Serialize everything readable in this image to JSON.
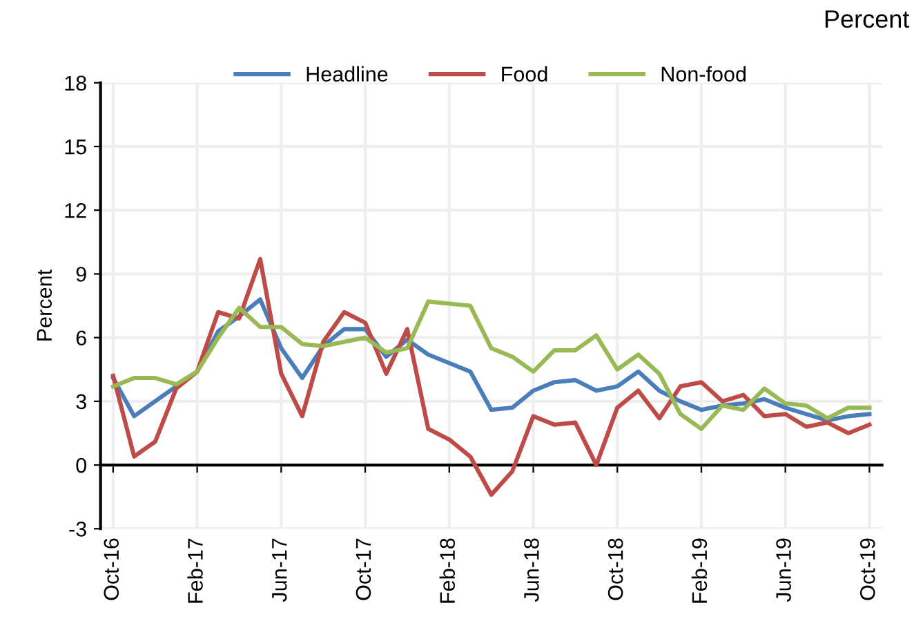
{
  "chart_data": {
    "type": "line",
    "categories": [
      "Oct-16",
      null,
      null,
      null,
      "Feb-17",
      null,
      null,
      null,
      "Jun-17",
      null,
      null,
      null,
      "Oct-17",
      null,
      null,
      null,
      "Feb-18",
      null,
      null,
      null,
      "Jun-18",
      null,
      null,
      null,
      "Oct-18",
      null,
      null,
      null,
      "Feb-19",
      null,
      null,
      null,
      "Jun-19",
      null,
      null,
      null,
      "Oct-19"
    ],
    "series": [
      {
        "name": "Headline",
        "color": "#4a7ebb",
        "values": [
          4.1,
          2.3,
          3.0,
          3.7,
          4.4,
          6.3,
          7.0,
          7.8,
          5.5,
          4.1,
          5.6,
          6.4,
          6.4,
          5.1,
          5.9,
          5.2,
          4.8,
          4.4,
          2.6,
          2.7,
          3.5,
          3.9,
          4.0,
          3.5,
          3.7,
          4.4,
          3.5,
          3.0,
          2.6,
          2.8,
          2.9,
          3.1,
          2.7,
          2.4,
          2.1,
          2.3,
          2.4
        ]
      },
      {
        "name": "Food",
        "color": "#be4b48",
        "values": [
          4.2,
          0.4,
          1.1,
          3.6,
          4.4,
          7.2,
          6.9,
          9.7,
          4.3,
          2.3,
          5.8,
          7.2,
          6.7,
          4.3,
          6.4,
          1.7,
          1.2,
          0.4,
          -1.4,
          -0.3,
          2.3,
          1.9,
          2.0,
          0.0,
          2.7,
          3.5,
          2.2,
          3.7,
          3.9,
          3.0,
          3.3,
          2.3,
          2.4,
          1.8,
          2.0,
          1.5,
          1.9
        ]
      },
      {
        "name": "Non-food",
        "color": "#98b954",
        "values": [
          3.7,
          4.1,
          4.1,
          3.8,
          4.4,
          6.0,
          7.4,
          6.5,
          6.5,
          5.7,
          5.6,
          5.8,
          6.0,
          5.3,
          5.5,
          7.7,
          7.6,
          7.5,
          5.5,
          5.1,
          4.4,
          5.4,
          5.4,
          6.1,
          4.5,
          5.2,
          4.3,
          2.4,
          1.7,
          2.8,
          2.6,
          3.6,
          2.9,
          2.8,
          2.2,
          2.7,
          2.7
        ]
      }
    ],
    "ylabel": "Percent",
    "ylim": [
      -3,
      18
    ],
    "yticks": [
      -3,
      0,
      3,
      6,
      9,
      12,
      15,
      18
    ],
    "annotations": [
      "Percent"
    ],
    "grid": true,
    "legend": "top",
    "marker": "none",
    "line_style": "solid"
  }
}
